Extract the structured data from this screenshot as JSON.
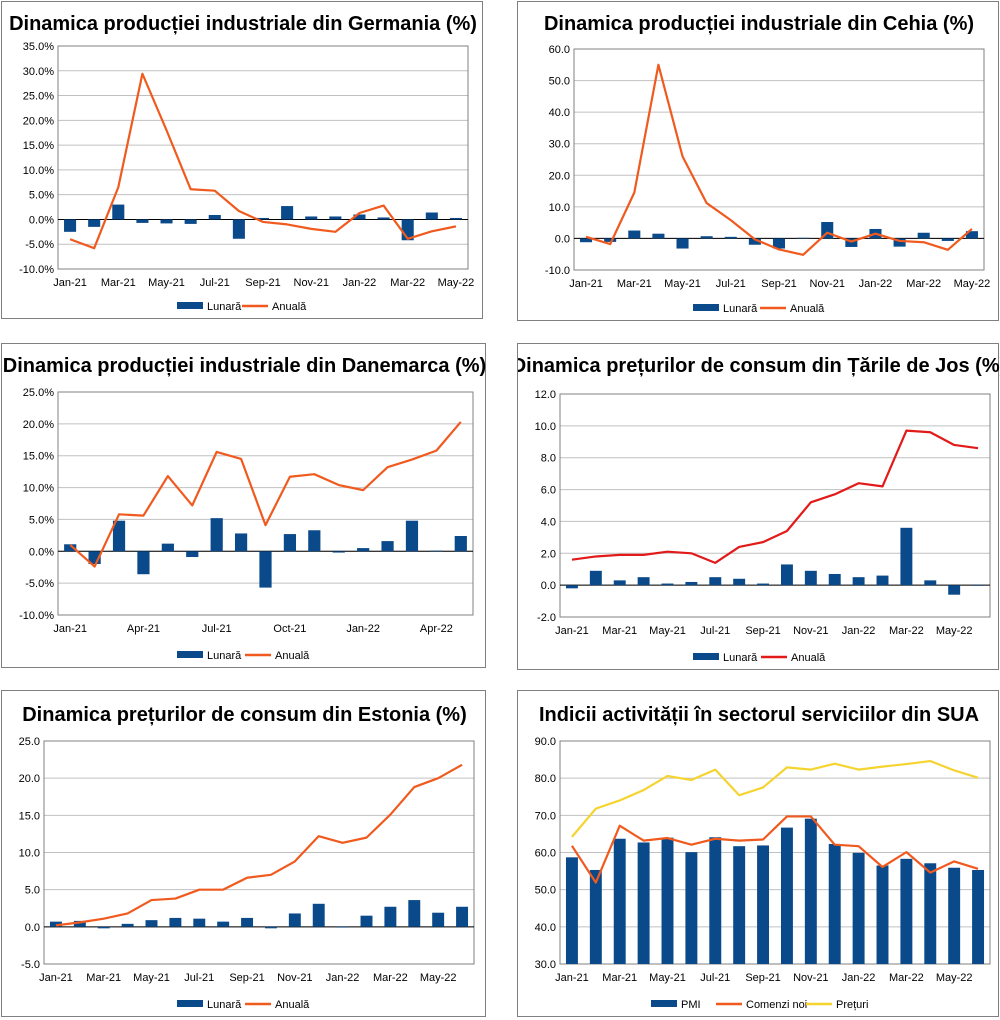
{
  "charts": [
    {
      "type": "bar+line",
      "title": "Dinamica producției industriale din Germania (%)",
      "ylim": [
        -10,
        35
      ],
      "ystep": 5,
      "ydecimals": 1,
      "ysuffix": "%",
      "categories": [
        "Jan-21",
        "Feb-21",
        "Mar-21",
        "Apr-21",
        "May-21",
        "Jun-21",
        "Jul-21",
        "Aug-21",
        "Sep-21",
        "Oct-21",
        "Nov-21",
        "Dec-21",
        "Jan-22",
        "Feb-22",
        "Mar-22",
        "Apr-22",
        "May-22"
      ],
      "tick_labels": [
        "Jan-21",
        "Mar-21",
        "May-21",
        "Jul-21",
        "Sep-21",
        "Nov-21",
        "Jan-22",
        "Mar-22",
        "May-22"
      ],
      "series": [
        {
          "name": "Lunară",
          "kind": "bar",
          "color": "#0b4a8a",
          "values": [
            -2.5,
            -1.5,
            3.0,
            -0.7,
            -0.8,
            -0.9,
            0.9,
            -3.9,
            0.3,
            2.7,
            0.6,
            0.6,
            1.0,
            0.4,
            -4.2,
            1.4,
            0.3
          ]
        },
        {
          "name": "Anuală",
          "kind": "line",
          "color": "#f05a1e",
          "values": [
            -4.0,
            -5.8,
            6.5,
            29.4,
            18.0,
            6.1,
            5.8,
            1.7,
            -0.5,
            -1.0,
            -1.9,
            -2.5,
            1.3,
            2.8,
            -3.9,
            -2.4,
            -1.4
          ]
        }
      ]
    },
    {
      "type": "bar+line",
      "title": "Dinamica producției industriale din Cehia (%)",
      "ylim": [
        -10,
        60
      ],
      "ystep": 10,
      "ydecimals": 1,
      "ysuffix": "",
      "categories": [
        "Jan-21",
        "Feb-21",
        "Mar-21",
        "Apr-21",
        "May-21",
        "Jun-21",
        "Jul-21",
        "Aug-21",
        "Sep-21",
        "Oct-21",
        "Nov-21",
        "Dec-21",
        "Jan-22",
        "Feb-22",
        "Mar-22",
        "Apr-22",
        "May-22"
      ],
      "tick_labels": [
        "Jan-21",
        "Mar-21",
        "May-21",
        "Jul-21",
        "Sep-21",
        "Nov-21",
        "Jan-22",
        "Mar-22",
        "May-22"
      ],
      "series": [
        {
          "name": "Lunară",
          "kind": "bar",
          "color": "#0b4a8a",
          "values": [
            -1.2,
            -1.1,
            2.5,
            1.5,
            -3.2,
            0.7,
            0.5,
            -2.0,
            -3.2,
            0.2,
            5.2,
            -2.7,
            3.0,
            -2.6,
            1.8,
            -0.8,
            2.3
          ]
        },
        {
          "name": "Anuală",
          "kind": "line",
          "color": "#f05a1e",
          "values": [
            0.5,
            -1.8,
            14.5,
            55.0,
            26.0,
            11.2,
            5.8,
            -0.3,
            -3.5,
            -5.2,
            1.8,
            -1.0,
            1.5,
            -0.8,
            -1.2,
            -3.6,
            3.0
          ]
        }
      ]
    },
    {
      "type": "bar+line",
      "title": "Dinamica producției industriale din Danemarca (%)",
      "ylim": [
        -10,
        25
      ],
      "ystep": 5,
      "ydecimals": 1,
      "ysuffix": "%",
      "categories": [
        "Jan-21",
        "Feb-21",
        "Mar-21",
        "Apr-21",
        "May-21",
        "Jun-21",
        "Jul-21",
        "Aug-21",
        "Sep-21",
        "Oct-21",
        "Nov-21",
        "Dec-21",
        "Jan-22",
        "Feb-22",
        "Mar-22",
        "Apr-22",
        "May-22"
      ],
      "tick_labels": [
        "Jan-21",
        "Apr-21",
        "Jul-21",
        "Oct-21",
        "Jan-22",
        "Apr-22"
      ],
      "series": [
        {
          "name": "Lunară",
          "kind": "bar",
          "color": "#0b4a8a",
          "values": [
            1.1,
            -2.0,
            4.8,
            -3.6,
            1.2,
            -0.9,
            5.2,
            2.8,
            -5.7,
            2.7,
            3.3,
            -0.2,
            0.5,
            1.6,
            4.8,
            0.1,
            2.4
          ]
        },
        {
          "name": "Anuală",
          "kind": "line",
          "color": "#f05a1e",
          "values": [
            1.0,
            -2.4,
            5.8,
            5.6,
            11.8,
            7.2,
            15.6,
            14.5,
            4.1,
            11.7,
            12.1,
            10.4,
            9.6,
            13.2,
            14.4,
            15.8,
            20.3
          ]
        }
      ]
    },
    {
      "type": "bar+line",
      "title": "Dinamica prețurilor de consum din Țările de Jos (%)",
      "ylim": [
        -2,
        12
      ],
      "ystep": 2,
      "ydecimals": 1,
      "ysuffix": "",
      "categories": [
        "Jan-21",
        "Feb-21",
        "Mar-21",
        "Apr-21",
        "May-21",
        "Jun-21",
        "Jul-21",
        "Aug-21",
        "Sep-21",
        "Oct-21",
        "Nov-21",
        "Dec-21",
        "Jan-22",
        "Feb-22",
        "Mar-22",
        "Apr-22",
        "May-22",
        "Jun-22"
      ],
      "tick_labels": [
        "Jan-21",
        "Mar-21",
        "May-21",
        "Jul-21",
        "Sep-21",
        "Nov-21",
        "Jan-22",
        "Mar-22",
        "May-22"
      ],
      "series": [
        {
          "name": "Lunară",
          "kind": "bar",
          "color": "#0b4a8a",
          "values": [
            -0.2,
            0.9,
            0.3,
            0.5,
            0.1,
            0.2,
            0.5,
            0.4,
            0.1,
            1.3,
            0.9,
            0.7,
            0.5,
            0.6,
            3.6,
            0.3,
            -0.6,
            0.0
          ]
        },
        {
          "name": "Anuală",
          "kind": "line",
          "color": "#e21a1a",
          "values": [
            1.6,
            1.8,
            1.9,
            1.9,
            2.1,
            2.0,
            1.4,
            2.4,
            2.7,
            3.4,
            5.2,
            5.7,
            6.4,
            6.2,
            9.7,
            9.6,
            8.8,
            8.6
          ]
        }
      ]
    },
    {
      "type": "bar+line",
      "title": "Dinamica prețurilor de consum din Estonia (%)",
      "ylim": [
        -5,
        25
      ],
      "ystep": 5,
      "ydecimals": 1,
      "ysuffix": "",
      "categories": [
        "Jan-21",
        "Feb-21",
        "Mar-21",
        "Apr-21",
        "May-21",
        "Jun-21",
        "Jul-21",
        "Aug-21",
        "Sep-21",
        "Oct-21",
        "Nov-21",
        "Dec-21",
        "Jan-22",
        "Feb-22",
        "Mar-22",
        "Apr-22",
        "May-22",
        "Jun-22"
      ],
      "tick_labels": [
        "Jan-21",
        "Mar-21",
        "May-21",
        "Jul-21",
        "Sep-21",
        "Nov-21",
        "Jan-22",
        "Mar-22",
        "May-22"
      ],
      "series": [
        {
          "name": "Lunară",
          "kind": "bar",
          "color": "#0b4a8a",
          "values": [
            0.7,
            0.8,
            -0.2,
            0.4,
            0.9,
            1.2,
            1.1,
            0.7,
            1.2,
            -0.2,
            1.8,
            3.1,
            -0.1,
            1.5,
            2.7,
            3.6,
            1.9,
            2.7
          ]
        },
        {
          "name": "Anuală",
          "kind": "line",
          "color": "#f05a1e",
          "values": [
            0.2,
            0.6,
            1.1,
            1.8,
            3.6,
            3.8,
            5.0,
            5.0,
            6.6,
            7.0,
            8.8,
            12.2,
            11.3,
            12.0,
            15.1,
            18.8,
            20.0,
            21.8
          ]
        }
      ]
    },
    {
      "type": "bar+line",
      "title": "Indicii activității în sectorul serviciilor din SUA",
      "ylim": [
        30,
        90
      ],
      "ystep": 10,
      "ydecimals": 1,
      "ysuffix": "",
      "categories": [
        "Jan-21",
        "Feb-21",
        "Mar-21",
        "Apr-21",
        "May-21",
        "Jun-21",
        "Jul-21",
        "Aug-21",
        "Sep-21",
        "Oct-21",
        "Nov-21",
        "Dec-21",
        "Jan-22",
        "Feb-22",
        "Mar-22",
        "Apr-22",
        "May-22",
        "Jun-22"
      ],
      "tick_labels": [
        "Jan-21",
        "Mar-21",
        "May-21",
        "Jul-21",
        "Sep-21",
        "Nov-21",
        "Jan-22",
        "Mar-22",
        "May-22"
      ],
      "series": [
        {
          "name": "PMI",
          "kind": "bar",
          "color": "#0b4a8a",
          "values": [
            58.7,
            55.3,
            63.7,
            62.7,
            64.0,
            60.1,
            64.1,
            61.7,
            61.9,
            66.7,
            69.1,
            62.3,
            59.9,
            56.5,
            58.3,
            57.1,
            55.9,
            55.3
          ]
        },
        {
          "name": "Comenzi noi",
          "kind": "line",
          "color": "#f05a1e",
          "values": [
            61.8,
            51.9,
            67.2,
            63.2,
            63.9,
            62.1,
            63.7,
            63.2,
            63.5,
            69.7,
            69.7,
            62.1,
            61.7,
            56.1,
            60.1,
            54.6,
            57.6,
            55.6
          ]
        },
        {
          "name": "Prețuri",
          "kind": "line",
          "color": "#f5d430",
          "values": [
            64.2,
            71.8,
            74.0,
            76.8,
            80.6,
            79.5,
            82.3,
            75.4,
            77.5,
            82.9,
            82.3,
            83.9,
            82.3,
            83.1,
            83.8,
            84.6,
            82.1,
            80.1
          ]
        }
      ]
    }
  ]
}
